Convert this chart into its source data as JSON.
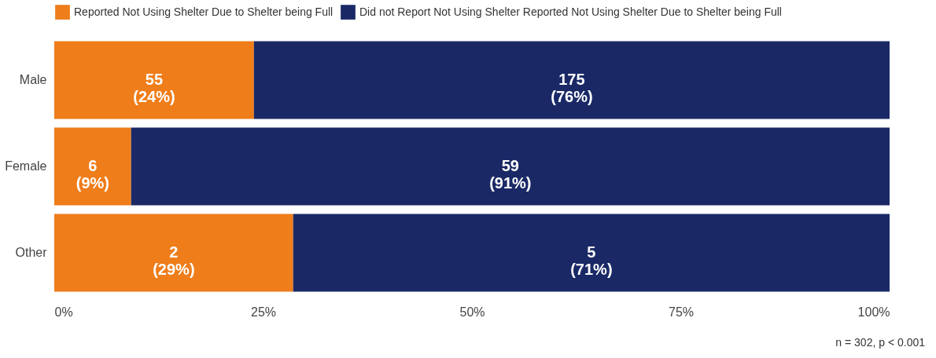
{
  "chart_data": {
    "type": "bar",
    "orientation": "horizontal",
    "stacked": true,
    "categories": [
      "Male",
      "Female",
      "Other"
    ],
    "series": [
      {
        "name": "Reported Not Using Shelter Due to Shelter being Full",
        "color": "#ee7d1a",
        "values": [
          23.9,
          9.2,
          28.6
        ],
        "value_labels": [
          "55\n(24%)",
          "6\n(9%)",
          "2\n(29%)"
        ]
      },
      {
        "name": "Did not Report Not Using Shelter Reported Not Using Shelter Due to Shelter being Full",
        "color": "#1a2966",
        "values": [
          76.1,
          90.8,
          71.4
        ],
        "value_labels": [
          "175\n(76%)",
          "59\n(91%)",
          "5\n(71%)"
        ]
      }
    ],
    "xlim": [
      0,
      100
    ],
    "xticks": [
      {
        "value": 0,
        "label": "0%"
      },
      {
        "value": 25,
        "label": "25%"
      },
      {
        "value": 50,
        "label": "50%"
      },
      {
        "value": 75,
        "label": "75%"
      },
      {
        "value": 100,
        "label": "100%"
      }
    ],
    "grid": false,
    "legend": "top left",
    "annotations": [
      "n = 302, p < 0.001"
    ]
  }
}
